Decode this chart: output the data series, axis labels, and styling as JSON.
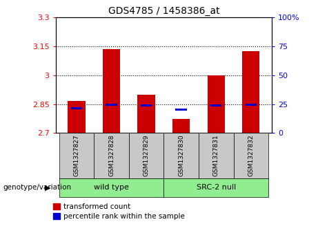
{
  "title": "GDS4785 / 1458386_at",
  "samples": [
    "GSM1327827",
    "GSM1327828",
    "GSM1327829",
    "GSM1327830",
    "GSM1327831",
    "GSM1327832"
  ],
  "red_values": [
    2.865,
    3.135,
    2.9,
    2.775,
    3.0,
    3.125
  ],
  "blue_values": [
    2.828,
    2.848,
    2.845,
    2.82,
    2.843,
    2.848
  ],
  "ylim_left": [
    2.7,
    3.3
  ],
  "yticks_left": [
    2.7,
    2.85,
    3.0,
    3.15,
    3.3
  ],
  "ytick_labels_left": [
    "2.7",
    "2.85",
    "3",
    "3.15",
    "3.3"
  ],
  "yticks_right": [
    0,
    25,
    50,
    75,
    100
  ],
  "ytick_labels_right": [
    "0",
    "25",
    "50",
    "75",
    "100%"
  ],
  "hlines": [
    2.85,
    3.0,
    3.15
  ],
  "group_label_prefix": "genotype/variation",
  "bar_color_red": "#cc0000",
  "bar_color_blue": "#0000cc",
  "bar_width": 0.5,
  "background_color": "#ffffff",
  "plot_bg_color": "#ffffff",
  "label_box_color": "#c8c8c8",
  "group_box_color": "#90EE90",
  "legend_red": "transformed count",
  "legend_blue": "percentile rank within the sample",
  "group_info": [
    {
      "label": "wild type",
      "start": 0,
      "end": 2
    },
    {
      "label": "SRC-2 null",
      "start": 3,
      "end": 5
    }
  ]
}
